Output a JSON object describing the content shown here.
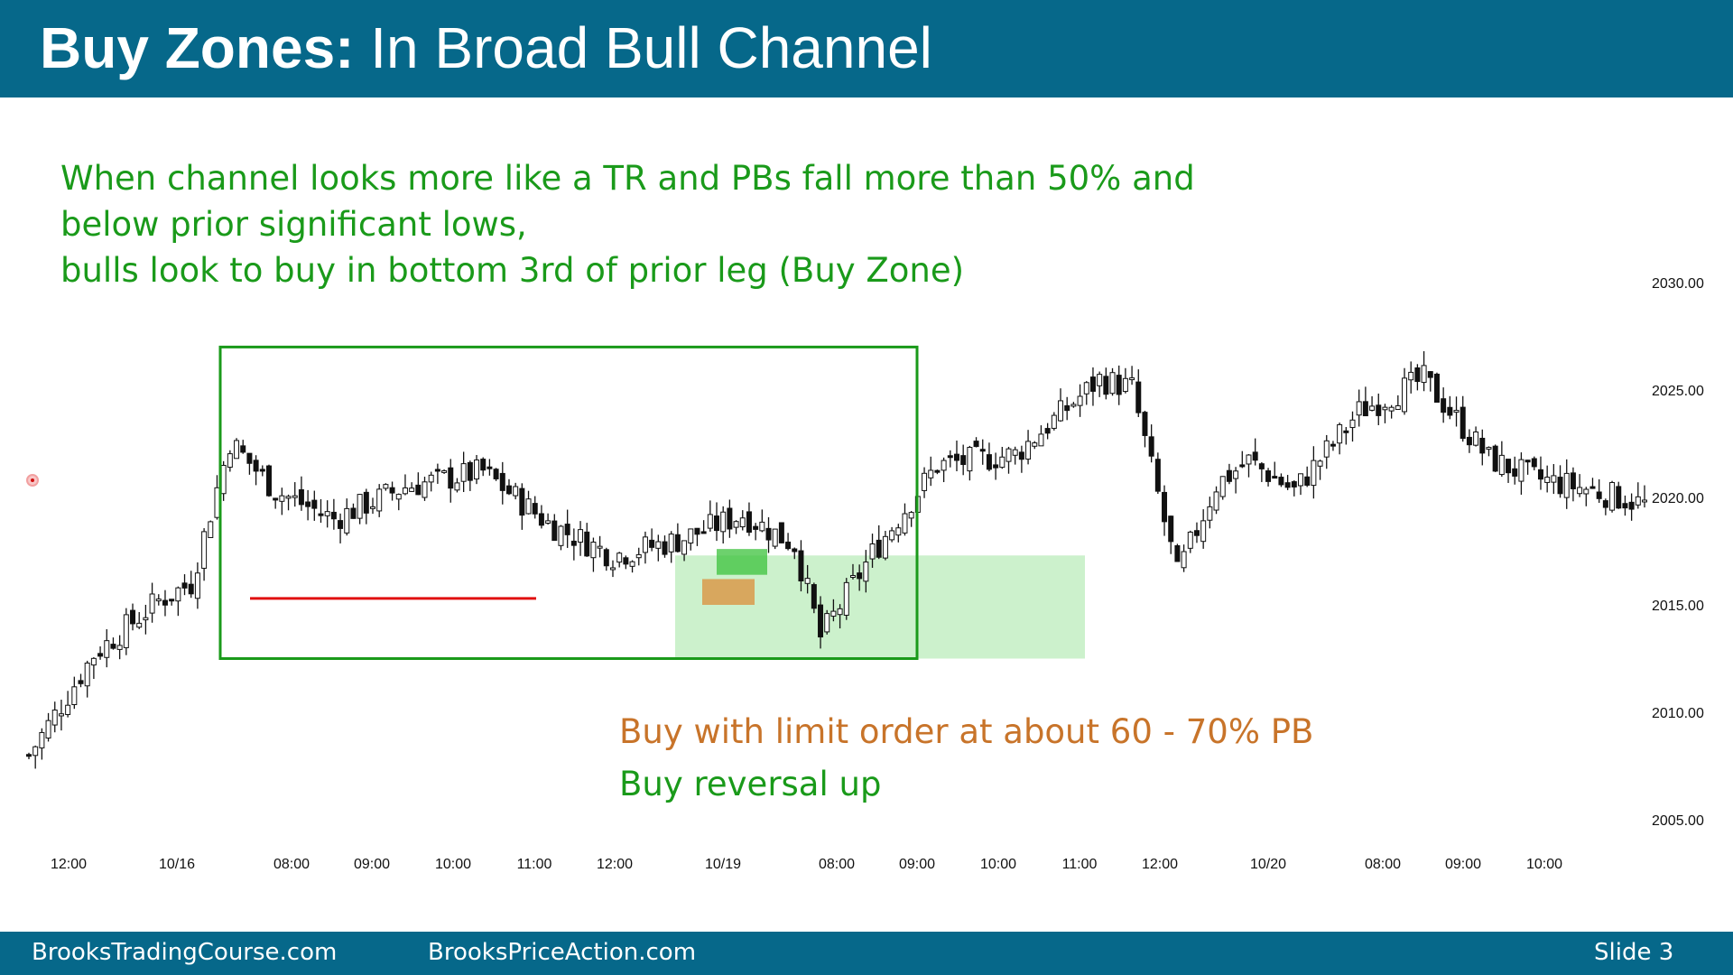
{
  "slide": {
    "title_bold": "Buy Zones:",
    "title_rest": " In Broad Bull Channel",
    "notes": [
      "When channel looks more like a TR and PBs fall more than 50% and",
      "below prior significant lows,",
      "bulls look to buy in bottom 3rd of prior leg (Buy Zone)"
    ],
    "annotation_limit": "Buy with limit order at about 60 - 70% PB",
    "annotation_reversal": "Buy reversal up",
    "footer_left": "BrooksTradingCourse.com",
    "footer_mid": "BrooksPriceAction.com",
    "footer_right": "Slide  3"
  },
  "colors": {
    "header_bg": "#06688a",
    "channel_box": "#1a9a1a",
    "support_line": "#e01010",
    "buy_zone": "#8fe08f",
    "limit_zone": "#d99a4a",
    "entry_zone": "#3cc23c",
    "candle": "#111111"
  },
  "chart_data": {
    "type": "candlestick",
    "title": "",
    "xlabel": "",
    "ylabel": "",
    "ylim": [
      2003,
      2032
    ],
    "yticks": [
      2005,
      2010,
      2015,
      2020,
      2025,
      2030
    ],
    "ytick_labels": [
      "2005.00",
      "2010.00",
      "2015.00",
      "2020.00",
      "2025.00",
      "2030.00"
    ],
    "xtick_labels": [
      "12:00",
      "10/16",
      "08:00",
      "09:00",
      "10:00",
      "11:00",
      "12:00",
      "10/19",
      "08:00",
      "09:00",
      "10:00",
      "11:00",
      "12:00",
      "10/20",
      "08:00",
      "09:00",
      "10:00"
    ],
    "bar_count": 250,
    "close_path": [
      [
        0,
        2008.0
      ],
      [
        10,
        2012.7
      ],
      [
        20,
        2015.2
      ],
      [
        25,
        2016.0
      ],
      [
        31,
        2022.6
      ],
      [
        38,
        2020.3
      ],
      [
        47,
        2019.0
      ],
      [
        58,
        2020.5
      ],
      [
        70,
        2021.2
      ],
      [
        80,
        2018.8
      ],
      [
        90,
        2017.3
      ],
      [
        100,
        2018.0
      ],
      [
        110,
        2019.2
      ],
      [
        118,
        2017.8
      ],
      [
        122,
        2013.5
      ],
      [
        130,
        2017.4
      ],
      [
        140,
        2021.5
      ],
      [
        152,
        2022.0
      ],
      [
        165,
        2025.5
      ],
      [
        170,
        2025.1
      ],
      [
        177,
        2016.4
      ],
      [
        183,
        2020.6
      ],
      [
        188,
        2021.7
      ],
      [
        195,
        2020.3
      ],
      [
        205,
        2024.0
      ],
      [
        215,
        2025.5
      ],
      [
        225,
        2021.8
      ],
      [
        232,
        2020.9
      ],
      [
        240,
        2020.4
      ],
      [
        250,
        2019.6
      ]
    ],
    "annotations": {
      "channel_box": {
        "x_from_label": "10/16",
        "price_range": [
          2012.5,
          2027.0
        ]
      },
      "support_line_price": 2015.3,
      "buy_zone_price_range": [
        2012.5,
        2017.3
      ],
      "limit_zone_price_range": [
        2015.0,
        2016.2
      ],
      "entry_zone_price_range": [
        2016.4,
        2017.6
      ]
    }
  }
}
